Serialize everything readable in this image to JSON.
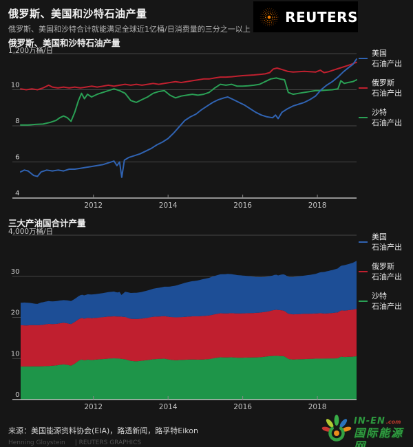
{
  "header": {
    "title": "俄罗斯、美国和沙特石油产量",
    "subtitle": "俄罗斯、美国和沙特合计就能满足全球近1亿桶/日消费量的三分之一以上"
  },
  "brand": {
    "logo_text": "REUTERS",
    "logo_dot_color": "#f07d00",
    "logo_bg": "#000000"
  },
  "legend": {
    "entries": [
      {
        "key": "us",
        "name": "美国",
        "sub": "石油产出",
        "color": "#3063b2"
      },
      {
        "key": "russia",
        "name": "俄罗斯",
        "sub": "石油产出",
        "color": "#c0202f"
      },
      {
        "key": "saudi",
        "name": "沙特",
        "sub": "石油产出",
        "color": "#2aa055"
      }
    ]
  },
  "footer": {
    "source": "来源：美国能源资料协会(EIA)，路透新闻，路孚特Eikon",
    "credit_name": "Henning Gloystein",
    "credit_org": "| REUTERS GRAPHICS"
  },
  "watermark": {
    "brand": "IN-EN",
    "suffix": ".com",
    "name_cn": "国际能源网"
  },
  "colors": {
    "background": "#161616",
    "gridline": "#474747",
    "axis_line": "#dcdcdc",
    "tick": "#8a8a8a",
    "axis_label": "#cfcfcf"
  },
  "chart_data": [
    {
      "type": "line",
      "title": "俄罗斯、美国和沙特石油产量",
      "unit_label": "1,200万桶/日",
      "x_range": [
        2010.05,
        2019.05
      ],
      "ylim": [
        4,
        12
      ],
      "yticks": [
        10,
        8,
        6,
        4
      ],
      "xticks": [
        2012,
        2014,
        2016,
        2018
      ],
      "grid": true,
      "legend_position": "right",
      "series": [
        {
          "key": "us",
          "name": "美国 石油产出",
          "color": "#3063b2",
          "points": [
            [
              2010.05,
              5.45
            ],
            [
              2010.15,
              5.55
            ],
            [
              2010.25,
              5.5
            ],
            [
              2010.4,
              5.25
            ],
            [
              2010.5,
              5.2
            ],
            [
              2010.6,
              5.45
            ],
            [
              2010.75,
              5.55
            ],
            [
              2010.9,
              5.5
            ],
            [
              2011.05,
              5.55
            ],
            [
              2011.2,
              5.5
            ],
            [
              2011.35,
              5.6
            ],
            [
              2011.5,
              5.6
            ],
            [
              2011.65,
              5.65
            ],
            [
              2011.8,
              5.7
            ],
            [
              2011.95,
              5.75
            ],
            [
              2012.1,
              5.8
            ],
            [
              2012.25,
              5.85
            ],
            [
              2012.4,
              5.95
            ],
            [
              2012.55,
              6.05
            ],
            [
              2012.63,
              5.8
            ],
            [
              2012.7,
              6.0
            ],
            [
              2012.76,
              5.15
            ],
            [
              2012.83,
              6.1
            ],
            [
              2012.95,
              6.25
            ],
            [
              2013.1,
              6.35
            ],
            [
              2013.25,
              6.45
            ],
            [
              2013.4,
              6.6
            ],
            [
              2013.55,
              6.75
            ],
            [
              2013.7,
              6.95
            ],
            [
              2013.85,
              7.1
            ],
            [
              2014.0,
              7.3
            ],
            [
              2014.15,
              7.6
            ],
            [
              2014.3,
              7.95
            ],
            [
              2014.45,
              8.3
            ],
            [
              2014.6,
              8.5
            ],
            [
              2014.75,
              8.65
            ],
            [
              2014.9,
              8.9
            ],
            [
              2015.05,
              9.1
            ],
            [
              2015.2,
              9.3
            ],
            [
              2015.35,
              9.45
            ],
            [
              2015.5,
              9.55
            ],
            [
              2015.6,
              9.6
            ],
            [
              2015.75,
              9.45
            ],
            [
              2015.9,
              9.3
            ],
            [
              2016.05,
              9.15
            ],
            [
              2016.2,
              8.95
            ],
            [
              2016.35,
              8.75
            ],
            [
              2016.5,
              8.6
            ],
            [
              2016.65,
              8.5
            ],
            [
              2016.8,
              8.45
            ],
            [
              2016.88,
              8.6
            ],
            [
              2016.95,
              8.4
            ],
            [
              2017.05,
              8.75
            ],
            [
              2017.2,
              8.95
            ],
            [
              2017.35,
              9.1
            ],
            [
              2017.5,
              9.2
            ],
            [
              2017.65,
              9.3
            ],
            [
              2017.8,
              9.45
            ],
            [
              2017.95,
              9.65
            ],
            [
              2018.1,
              10.0
            ],
            [
              2018.25,
              10.25
            ],
            [
              2018.4,
              10.45
            ],
            [
              2018.55,
              10.7
            ],
            [
              2018.7,
              11.0
            ],
            [
              2018.85,
              11.25
            ],
            [
              2018.95,
              11.4
            ],
            [
              2019.05,
              11.7
            ]
          ]
        },
        {
          "key": "russia",
          "name": "俄罗斯 石油产出",
          "color": "#c0202f",
          "points": [
            [
              2010.05,
              10.05
            ],
            [
              2010.2,
              10.0
            ],
            [
              2010.35,
              10.05
            ],
            [
              2010.5,
              10.0
            ],
            [
              2010.65,
              10.1
            ],
            [
              2010.8,
              10.25
            ],
            [
              2010.9,
              10.15
            ],
            [
              2011.05,
              10.1
            ],
            [
              2011.2,
              10.15
            ],
            [
              2011.35,
              10.1
            ],
            [
              2011.5,
              10.15
            ],
            [
              2011.65,
              10.1
            ],
            [
              2011.8,
              10.15
            ],
            [
              2011.95,
              10.2
            ],
            [
              2012.1,
              10.15
            ],
            [
              2012.25,
              10.2
            ],
            [
              2012.4,
              10.25
            ],
            [
              2012.55,
              10.2
            ],
            [
              2012.7,
              10.25
            ],
            [
              2012.85,
              10.3
            ],
            [
              2013.0,
              10.25
            ],
            [
              2013.15,
              10.3
            ],
            [
              2013.3,
              10.25
            ],
            [
              2013.45,
              10.3
            ],
            [
              2013.6,
              10.35
            ],
            [
              2013.75,
              10.3
            ],
            [
              2013.9,
              10.35
            ],
            [
              2014.05,
              10.4
            ],
            [
              2014.2,
              10.45
            ],
            [
              2014.35,
              10.4
            ],
            [
              2014.5,
              10.45
            ],
            [
              2014.65,
              10.5
            ],
            [
              2014.8,
              10.55
            ],
            [
              2014.95,
              10.6
            ],
            [
              2015.1,
              10.6
            ],
            [
              2015.25,
              10.65
            ],
            [
              2015.4,
              10.7
            ],
            [
              2015.55,
              10.7
            ],
            [
              2015.7,
              10.72
            ],
            [
              2015.85,
              10.75
            ],
            [
              2016.0,
              10.78
            ],
            [
              2016.15,
              10.8
            ],
            [
              2016.3,
              10.82
            ],
            [
              2016.45,
              10.85
            ],
            [
              2016.6,
              10.88
            ],
            [
              2016.72,
              10.95
            ],
            [
              2016.82,
              11.15
            ],
            [
              2016.92,
              11.2
            ],
            [
              2017.05,
              11.12
            ],
            [
              2017.2,
              11.02
            ],
            [
              2017.35,
              10.98
            ],
            [
              2017.5,
              11.0
            ],
            [
              2017.65,
              11.02
            ],
            [
              2017.8,
              11.0
            ],
            [
              2017.95,
              10.98
            ],
            [
              2018.08,
              11.08
            ],
            [
              2018.18,
              10.95
            ],
            [
              2018.3,
              11.0
            ],
            [
              2018.45,
              11.1
            ],
            [
              2018.6,
              11.2
            ],
            [
              2018.75,
              11.3
            ],
            [
              2018.9,
              11.4
            ],
            [
              2019.05,
              11.52
            ]
          ]
        },
        {
          "key": "saudi",
          "name": "沙特 石油产出",
          "color": "#2aa055",
          "points": [
            [
              2010.05,
              8.05
            ],
            [
              2010.25,
              8.05
            ],
            [
              2010.45,
              8.08
            ],
            [
              2010.65,
              8.1
            ],
            [
              2010.85,
              8.2
            ],
            [
              2011.0,
              8.3
            ],
            [
              2011.1,
              8.45
            ],
            [
              2011.2,
              8.55
            ],
            [
              2011.3,
              8.45
            ],
            [
              2011.4,
              8.25
            ],
            [
              2011.5,
              8.75
            ],
            [
              2011.6,
              9.4
            ],
            [
              2011.68,
              9.8
            ],
            [
              2011.76,
              9.5
            ],
            [
              2011.84,
              9.75
            ],
            [
              2011.95,
              9.6
            ],
            [
              2012.1,
              9.75
            ],
            [
              2012.25,
              9.85
            ],
            [
              2012.4,
              9.95
            ],
            [
              2012.55,
              10.05
            ],
            [
              2012.7,
              9.95
            ],
            [
              2012.85,
              9.8
            ],
            [
              2013.0,
              9.4
            ],
            [
              2013.15,
              9.3
            ],
            [
              2013.3,
              9.45
            ],
            [
              2013.45,
              9.6
            ],
            [
              2013.6,
              9.8
            ],
            [
              2013.75,
              9.9
            ],
            [
              2013.9,
              9.95
            ],
            [
              2014.05,
              9.7
            ],
            [
              2014.2,
              9.55
            ],
            [
              2014.35,
              9.65
            ],
            [
              2014.5,
              9.7
            ],
            [
              2014.65,
              9.75
            ],
            [
              2014.8,
              9.7
            ],
            [
              2014.95,
              9.75
            ],
            [
              2015.1,
              9.85
            ],
            [
              2015.25,
              10.1
            ],
            [
              2015.4,
              10.3
            ],
            [
              2015.55,
              10.25
            ],
            [
              2015.7,
              10.3
            ],
            [
              2015.85,
              10.2
            ],
            [
              2016.0,
              10.2
            ],
            [
              2016.15,
              10.22
            ],
            [
              2016.3,
              10.25
            ],
            [
              2016.45,
              10.3
            ],
            [
              2016.6,
              10.45
            ],
            [
              2016.75,
              10.6
            ],
            [
              2016.9,
              10.65
            ],
            [
              2017.0,
              10.6
            ],
            [
              2017.12,
              10.55
            ],
            [
              2017.22,
              9.85
            ],
            [
              2017.35,
              9.75
            ],
            [
              2017.5,
              9.8
            ],
            [
              2017.65,
              9.85
            ],
            [
              2017.8,
              9.9
            ],
            [
              2017.95,
              9.95
            ],
            [
              2018.1,
              9.95
            ],
            [
              2018.25,
              9.98
            ],
            [
              2018.4,
              10.0
            ],
            [
              2018.55,
              10.05
            ],
            [
              2018.63,
              10.5
            ],
            [
              2018.72,
              10.35
            ],
            [
              2018.82,
              10.4
            ],
            [
              2018.95,
              10.45
            ],
            [
              2019.05,
              10.55
            ]
          ]
        }
      ]
    },
    {
      "type": "area",
      "stacked": true,
      "title": "三大产油国合计产量",
      "unit_label": "4,000万桶/日",
      "x_range": [
        2010.05,
        2019.05
      ],
      "ylim": [
        0,
        40
      ],
      "yticks": [
        30,
        20,
        10,
        0
      ],
      "xticks": [
        2012,
        2014,
        2016,
        2018
      ],
      "grid": true,
      "legend_position": "right",
      "series_ref": 0,
      "stack_order": [
        "saudi",
        "russia",
        "us"
      ],
      "area_colors": {
        "us": "#1d4e96",
        "russia": "#c01f2f",
        "saudi": "#1e9549"
      }
    }
  ]
}
